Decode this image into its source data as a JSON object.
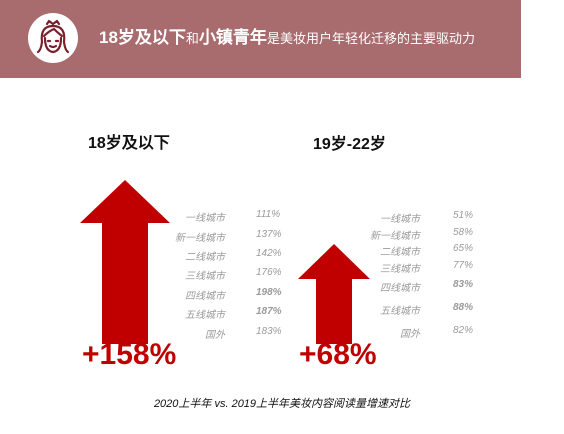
{
  "banner": {
    "title_part1": "18岁及以下",
    "title_part2": "和",
    "title_part3": "小镇青年",
    "title_part4": "是美妆用户年轻化迁移的主要驱动力",
    "icon": "woman-face-icon",
    "color": "#a86b6e"
  },
  "left_group": {
    "title": "18岁及以下",
    "total": "+158%",
    "rows": [
      {
        "city": "一线城市",
        "value": "111%"
      },
      {
        "city": "新一线城市",
        "value": "137%"
      },
      {
        "city": "二线城市",
        "value": "142%"
      },
      {
        "city": "三线城市",
        "value": "176%"
      },
      {
        "city": "四线城市",
        "value": "198%"
      },
      {
        "city": "五线城市",
        "value": "187%"
      },
      {
        "city": "国外",
        "value": "183%"
      }
    ]
  },
  "right_group": {
    "title": "19岁-22岁",
    "total": "+68%",
    "rows": [
      {
        "city": "一线城市",
        "value": "51%"
      },
      {
        "city": "新一线城市",
        "value": "58%"
      },
      {
        "city": "二线城市",
        "value": "65%"
      },
      {
        "city": "三线城市",
        "value": "77%"
      },
      {
        "city": "四线城市",
        "value": "83%"
      },
      {
        "city": "五线城市",
        "value": "88%"
      },
      {
        "city": "国外",
        "value": "82%"
      }
    ]
  },
  "caption": "2020上半年 vs. 2019上半年美妆内容阅读量增速对比",
  "colors": {
    "accent": "#c00000",
    "muted_text": "#9b9b9b"
  }
}
